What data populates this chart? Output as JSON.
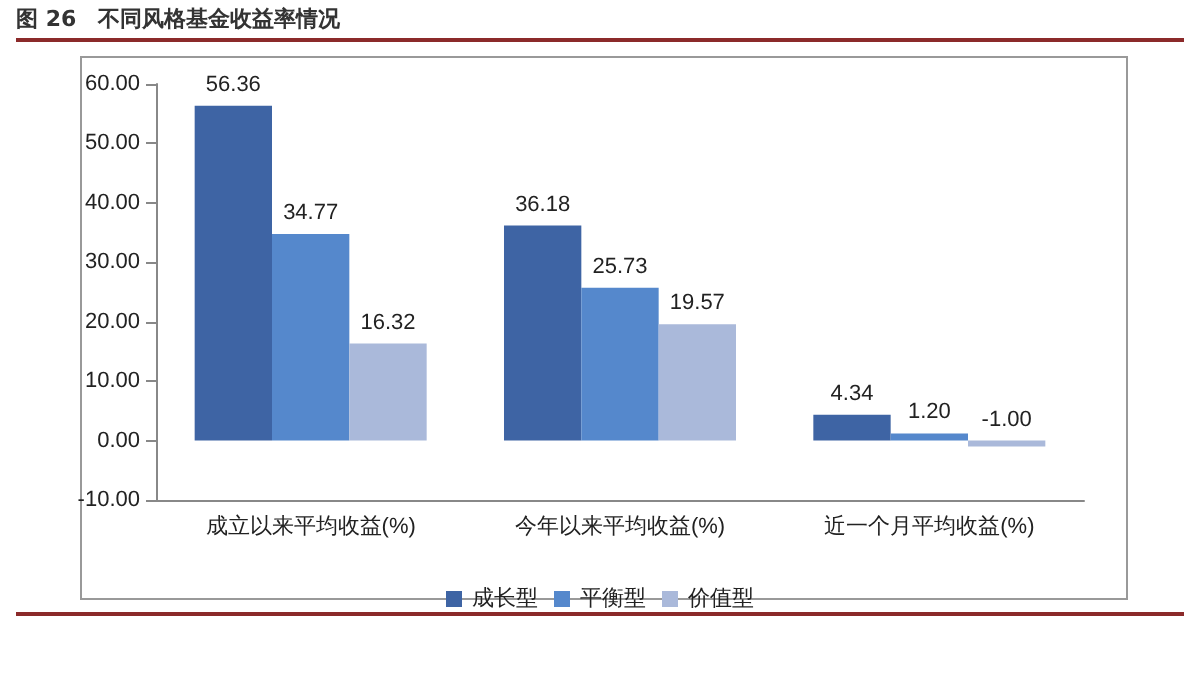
{
  "chart_data": {
    "type": "bar",
    "title": "图 26　不同风格基金收益率情况",
    "categories": [
      "成立以来平均收益(%)",
      "今年以来平均收益(%)",
      "近一个月平均收益(%)"
    ],
    "series": [
      {
        "name": "成长型",
        "color": "#3e64a4",
        "values": [
          56.36,
          36.18,
          4.34
        ],
        "value_labels": [
          "56.36",
          "36.18",
          "4.34"
        ]
      },
      {
        "name": "平衡型",
        "color": "#5588cc",
        "values": [
          34.77,
          25.73,
          1.2
        ],
        "value_labels": [
          "34.77",
          "25.73",
          "1.20"
        ]
      },
      {
        "name": "价值型",
        "color": "#aab9da",
        "values": [
          16.32,
          19.57,
          -1.0
        ],
        "value_labels": [
          "16.32",
          "19.57",
          "-1.00"
        ]
      }
    ],
    "ylim": [
      -10,
      60
    ],
    "yticks": [
      {
        "value": -10,
        "label": "-10.00"
      },
      {
        "value": 0,
        "label": "0.00"
      },
      {
        "value": 10,
        "label": "10.00"
      },
      {
        "value": 20,
        "label": "20.00"
      },
      {
        "value": 30,
        "label": "30.00"
      },
      {
        "value": 40,
        "label": "40.00"
      },
      {
        "value": 50,
        "label": "50.00"
      },
      {
        "value": 60,
        "label": "60.00"
      }
    ],
    "grid": false,
    "legend": "bottom"
  }
}
